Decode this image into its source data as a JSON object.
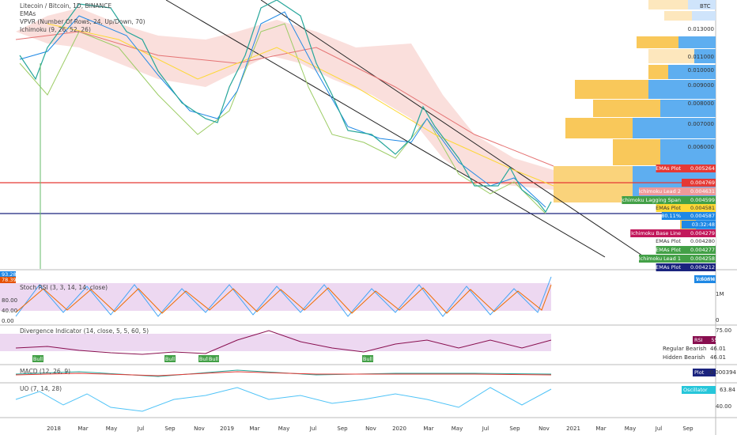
{
  "header": {
    "title": "Litecoin / Bitcoin, 1D, BINANCE",
    "indicators": [
      "EMAs",
      "VPVR (Number Of Rows, 24, Up/Down, 70)",
      "Ichimoku (9, 26, 52, 26)"
    ]
  },
  "price_axis": {
    "currency": "BTC",
    "labels": [
      "0.013000",
      "0.011000",
      "0.010000",
      "0.009000",
      "0.008000",
      "0.007000",
      "0.006000"
    ]
  },
  "price_tags": [
    {
      "label": "EMAs Plot",
      "value": "0.005264"
    },
    {
      "value": "0.004769"
    },
    {
      "label": "Ichimoku Lead 2",
      "value": "0.004631"
    },
    {
      "label": "Ichimoku Lagging Span",
      "value": "0.004599"
    },
    {
      "label": "EMAs Plot",
      "value": "0.004581"
    },
    {
      "label": "-80.11%",
      "value": "0.004587"
    },
    {
      "value": "03:32:48"
    },
    {
      "label": "Ichimoku Base Line",
      "value": "0.004279"
    },
    {
      "label": "EMAs Plot",
      "value": "0.004280"
    },
    {
      "label": "EMAs Plot",
      "value": "0.004277"
    },
    {
      "label": "Ichimoku Lead 1",
      "value": "0.004258"
    },
    {
      "label": "EMAs Plot",
      "value": "0.004212"
    }
  ],
  "time_axis": [
    "2018",
    "Mar",
    "May",
    "Jul",
    "Sep",
    "Nov",
    "2019",
    "Mar",
    "May",
    "Jul",
    "Sep",
    "Nov",
    "2020",
    "Mar",
    "May",
    "Jul",
    "Sep",
    "Nov",
    "2021",
    "Mar",
    "May",
    "Jul",
    "Sep"
  ],
  "panels": {
    "stoch_rsi": {
      "title": "Stoch RSI (3, 3, 14, 14, close)",
      "badges": [
        "93.28",
        "78.39"
      ],
      "axis": [
        "80.00",
        "40.00",
        "0.00"
      ],
      "volume_axis": [
        "1M",
        "0"
      ],
      "volume_tag": {
        "label": "Volume",
        "value": "1.606M"
      }
    },
    "divergence": {
      "title": "Divergence Indicator (14, close, 5, 5, 60, 5)",
      "axis": [
        "75.00"
      ],
      "tags": [
        {
          "label": "RSI",
          "value": "55.58"
        },
        {
          "label": "Regular Bearish",
          "value": "46.01"
        },
        {
          "label": "Hidden Bearish",
          "value": "46.01"
        }
      ],
      "signals": [
        "Bull",
        "Bull",
        "Bull",
        "Bull",
        "Bull"
      ]
    },
    "macd": {
      "title": "MACD (12, 26, 9)",
      "tag": {
        "label": "Plot",
        "value": "-0.000394"
      }
    },
    "uo": {
      "title": "UO (7, 14, 28)",
      "axis": [
        "40.00"
      ],
      "tag": {
        "label": "Oscillator",
        "value": "63.84"
      }
    }
  }
}
